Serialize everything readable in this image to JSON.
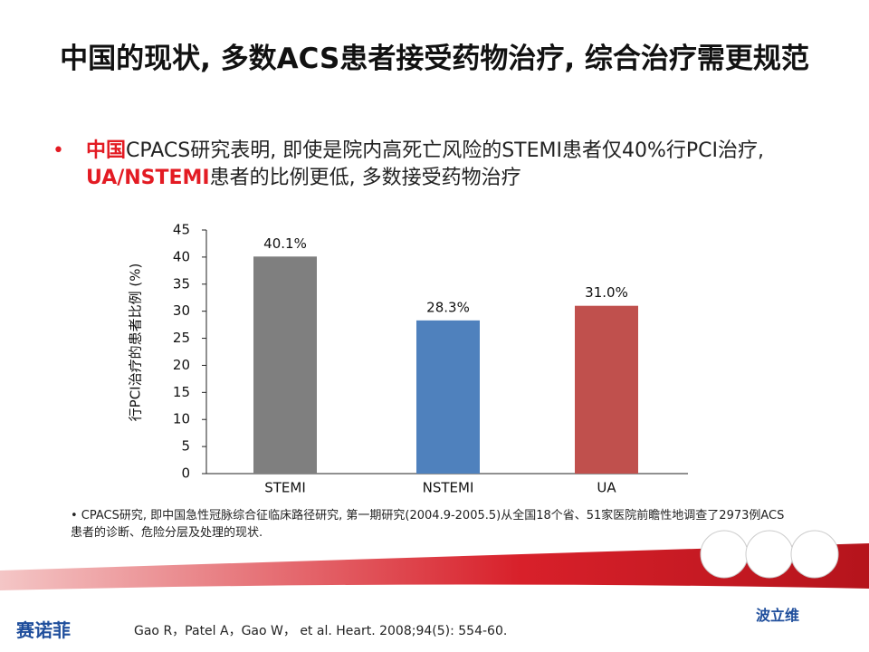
{
  "title": "中国的现状, 多数ACS患者接受药物治疗, 综合治疗需更规范",
  "bullet": [
    {
      "text": "中国",
      "color": "#e31b23"
    },
    {
      "text": "CPACS研究表明, 即使是院内高死亡风险的STEMI患者仅40%行PCI治疗, ",
      "color": "#222222"
    },
    {
      "text": "UA/NSTEMI",
      "color": "#e31b23"
    },
    {
      "text": "患者的比例更低, 多数接受药物治疗",
      "color": "#222222"
    }
  ],
  "footnote": "• CPACS研究, 即中国急性冠脉综合征临床路径研究, 第一期研究(2004.9-2005.5)从全国18个省、51家医院前瞻性地调查了2973例ACS患者的诊断、危险分层及处理的现状.",
  "reference": "Gao R，Patel A，Gao W， et al. Heart. 2008;94(5): 554-60.",
  "logo_left": "赛诺菲",
  "logo_right": "波立维",
  "chart_data": {
    "type": "bar",
    "y_label": "行PCI治疗的患者比例 (%)",
    "categories": [
      "STEMI",
      "NSTEMI",
      "UA"
    ],
    "values": [
      40.1,
      28.3,
      31.0
    ],
    "value_labels": [
      "40.1%",
      "28.3%",
      "31.0%"
    ],
    "colors": [
      "#7f7f7f",
      "#4f81bd",
      "#c0504d"
    ],
    "ylim": [
      0,
      45
    ],
    "yticks": [
      0,
      5,
      10,
      15,
      20,
      25,
      30,
      35,
      40,
      45
    ],
    "grid": false
  }
}
